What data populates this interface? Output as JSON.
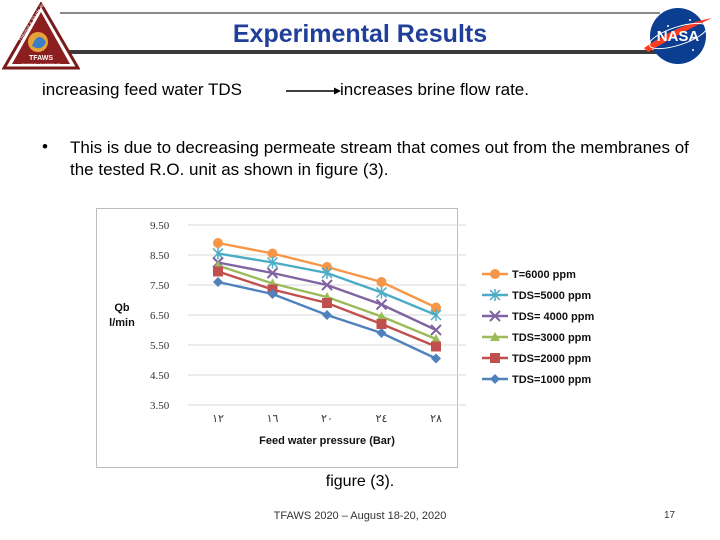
{
  "slide": {
    "title": "Experimental Results",
    "lead_left": "increasing feed water TDS",
    "lead_right": "increases brine flow rate.",
    "bullet": "This is due to decreasing permeate stream that comes out from the membranes of the tested R.O. unit as shown in figure (3).",
    "caption": "figure (3).",
    "footer": "TFAWS 2020 – August 18-20, 2020",
    "page_number": "17",
    "logo_left_text": [
      "Thermal & Fluids Analysis Workshop",
      "TFAWS",
      "PASSIVE LEADERSHIP"
    ],
    "logo_right_text": "NASA",
    "colors": {
      "title": "#1f3f9a",
      "header_rule": "#3a3a3a"
    }
  },
  "chart_data": {
    "type": "line",
    "title": "",
    "xlabel": "Feed water pressure (Bar)",
    "ylabel": [
      "Qb",
      "l/min"
    ],
    "categories": [
      "١٢",
      "١٦",
      "٢٠",
      "٢٤",
      "٢٨"
    ],
    "ylim": [
      3.5,
      9.5
    ],
    "yticks": [
      "9.50",
      "8.50",
      "7.50",
      "6.50",
      "5.50",
      "4.50",
      "3.50"
    ],
    "ytick_values": [
      9.5,
      8.5,
      7.5,
      6.5,
      5.5,
      4.5,
      3.5
    ],
    "grid": true,
    "legend_position": "right",
    "series": [
      {
        "name": "T=6000  ppm",
        "color": "#f79646",
        "marker": "circle",
        "values": [
          8.9,
          8.55,
          8.1,
          7.6,
          6.75
        ]
      },
      {
        "name": "TDS=5000 ppm",
        "color": "#4bacc6",
        "marker": "asterisk",
        "values": [
          8.55,
          8.25,
          7.9,
          7.25,
          6.5
        ]
      },
      {
        "name": "TDS= 4000 ppm",
        "color": "#8064a2",
        "marker": "x",
        "values": [
          8.25,
          7.9,
          7.5,
          6.85,
          6.0
        ]
      },
      {
        "name": "TDS=3000 ppm",
        "color": "#9bbb59",
        "marker": "triangle",
        "values": [
          8.15,
          7.55,
          7.1,
          6.45,
          5.7
        ]
      },
      {
        "name": "TDS=2000  ppm",
        "color": "#c0504d",
        "marker": "square",
        "values": [
          7.95,
          7.35,
          6.9,
          6.2,
          5.45
        ]
      },
      {
        "name": "TDS=1000 ppm",
        "color": "#4f81bd",
        "marker": "diamond",
        "values": [
          7.6,
          7.2,
          6.5,
          5.9,
          5.05
        ]
      }
    ]
  }
}
